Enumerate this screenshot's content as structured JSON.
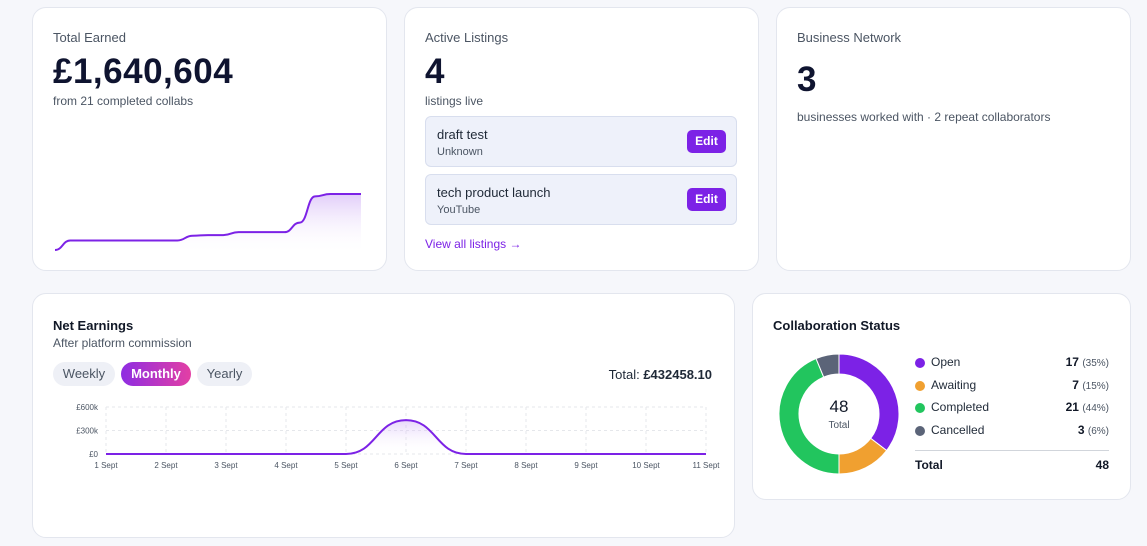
{
  "total_earned": {
    "label": "Total Earned",
    "value": "£1,640,604",
    "sub": "from 21 completed collabs",
    "chart_data": {
      "type": "area",
      "x": [
        0,
        1,
        2,
        3,
        4,
        5,
        6,
        7,
        8,
        9,
        10,
        11,
        12,
        13,
        14,
        15,
        16,
        17,
        18,
        19,
        20
      ],
      "values": [
        0,
        160,
        160,
        160,
        160,
        160,
        160,
        160,
        160,
        240,
        250,
        250,
        300,
        300,
        300,
        300,
        460,
        900,
        940,
        940,
        940
      ]
    }
  },
  "active_listings": {
    "label": "Active Listings",
    "value": "4",
    "sub": "listings live",
    "items": [
      {
        "title": "draft test",
        "platform": "Unknown",
        "edit_label": "Edit"
      },
      {
        "title": "tech product launch",
        "platform": "YouTube",
        "edit_label": "Edit"
      }
    ],
    "view_all": "View all listings →"
  },
  "business_network": {
    "label": "Business Network",
    "value": "3",
    "sub": "businesses worked with · 2 repeat collaborators"
  },
  "net_earnings": {
    "title": "Net Earnings",
    "subtitle": "After platform commission",
    "tabs": [
      "Weekly",
      "Monthly",
      "Yearly"
    ],
    "active_tab": "Monthly",
    "total_label": "Total: ",
    "total_value": "£432458.10",
    "chart_data": {
      "type": "line",
      "categories": [
        "1 Sept",
        "2 Sept",
        "3 Sept",
        "4 Sept",
        "5 Sept",
        "6 Sept",
        "7 Sept",
        "8 Sept",
        "9 Sept",
        "10 Sept",
        "11 Sept"
      ],
      "values": [
        0,
        0,
        0,
        0,
        0,
        432458.1,
        0,
        0,
        0,
        0,
        0
      ],
      "y_ticks": [
        "£0",
        "£300k",
        "£600k"
      ],
      "ylim": [
        0,
        600000
      ],
      "grid": true
    }
  },
  "collab_status": {
    "title": "Collaboration Status",
    "center_value": "48",
    "center_label": "Total",
    "chart_data": {
      "type": "pie",
      "labels": [
        "Open",
        "Awaiting",
        "Completed",
        "Cancelled"
      ],
      "values": [
        17,
        7,
        21,
        3
      ],
      "percents": [
        "(35%)",
        "(15%)",
        "(44%)",
        "(6%)"
      ],
      "colors": [
        "#7c22e6",
        "#f0a030",
        "#22c55e",
        "#5b6478"
      ]
    },
    "total_label": "Total",
    "total_value": "48"
  }
}
